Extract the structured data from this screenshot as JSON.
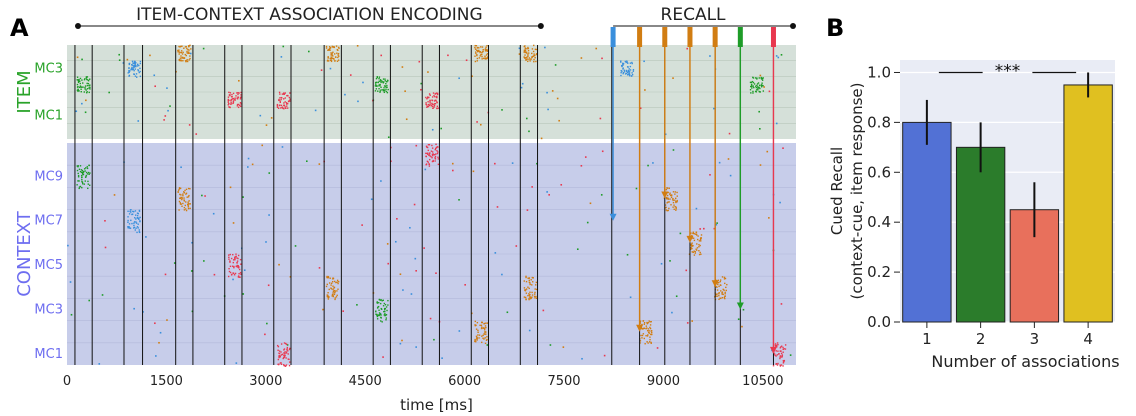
{
  "panel_labels": {
    "a": "A",
    "b": "B"
  },
  "colors": {
    "item_bg": "#d5e0d9",
    "context_bg": "#c7cdea",
    "blue": "#3a8fdc",
    "orange": "#d17d12",
    "green": "#1e9c28",
    "red": "#e8384f",
    "item_label": "#2aa32a",
    "context_label": "#6e6ef0",
    "bar_blue": "#5271d5",
    "bar_green": "#2b7c2b",
    "bar_red": "#e8705c",
    "bar_yellow": "#e0c020",
    "plot_bg_b": "#e9ecf5"
  },
  "chart_data": [
    {
      "type": "scatter",
      "title_encoding": "ITEM-CONTEXT ASSOCIATION ENCODING",
      "title_recall": "RECALL",
      "xlabel": "time [ms]",
      "xlim": [
        0,
        11000
      ],
      "xticks": [
        "0",
        "1500",
        "3000",
        "4500",
        "6000",
        "7500",
        "9000",
        "10500"
      ],
      "xtick_values": [
        0,
        1500,
        3000,
        4500,
        6000,
        7500,
        9000,
        10500
      ],
      "item_group_label": "ITEM",
      "context_group_label": "CONTEXT",
      "item_row_labels": [
        "MC3",
        "MC1"
      ],
      "context_row_labels": [
        "MC9",
        "MC7",
        "MC5",
        "MC3",
        "MC1"
      ],
      "item_rows": 6,
      "context_rows": 10,
      "encoding_end_ms": 7150,
      "stimulus_lines_ms": [
        120,
        380,
        860,
        1140,
        1640,
        1900,
        2380,
        2640,
        3120,
        3380,
        3880,
        4140,
        4620,
        4880,
        5360,
        5620,
        6100,
        6360,
        6840,
        7100,
        8220,
        8640,
        9020,
        9400,
        9780,
        10160,
        10660
      ],
      "encoding_bursts": [
        {
          "t": 240,
          "group": "item",
          "row": 2,
          "color": "green"
        },
        {
          "t": 240,
          "group": "context",
          "row": 1,
          "color": "green"
        },
        {
          "t": 1000,
          "group": "item",
          "row": 1,
          "color": "blue"
        },
        {
          "t": 1000,
          "group": "context",
          "row": 3,
          "color": "blue"
        },
        {
          "t": 1760,
          "group": "item",
          "row": 0,
          "color": "orange"
        },
        {
          "t": 1760,
          "group": "context",
          "row": 2,
          "color": "orange"
        },
        {
          "t": 2520,
          "group": "item",
          "row": 3,
          "color": "red"
        },
        {
          "t": 2520,
          "group": "context",
          "row": 5,
          "color": "red"
        },
        {
          "t": 3260,
          "group": "item",
          "row": 3,
          "color": "red"
        },
        {
          "t": 3260,
          "group": "context",
          "row": 9,
          "color": "red"
        },
        {
          "t": 4000,
          "group": "item",
          "row": 0,
          "color": "orange"
        },
        {
          "t": 4000,
          "group": "context",
          "row": 6,
          "color": "orange"
        },
        {
          "t": 4740,
          "group": "item",
          "row": 2,
          "color": "green"
        },
        {
          "t": 4740,
          "group": "context",
          "row": 7,
          "color": "green"
        },
        {
          "t": 5500,
          "group": "item",
          "row": 3,
          "color": "red"
        },
        {
          "t": 5500,
          "group": "context",
          "row": 0,
          "color": "red"
        },
        {
          "t": 6240,
          "group": "item",
          "row": 0,
          "color": "orange"
        },
        {
          "t": 6240,
          "group": "context",
          "row": 8,
          "color": "orange"
        },
        {
          "t": 6980,
          "group": "item",
          "row": 0,
          "color": "orange"
        },
        {
          "t": 6980,
          "group": "context",
          "row": 6,
          "color": "orange"
        }
      ],
      "recall_cues": [
        {
          "t": 8240,
          "color": "blue",
          "target_row": 3,
          "response_group": "item",
          "response_row": 1,
          "response_t": 8440
        },
        {
          "t": 8640,
          "color": "orange",
          "target_row": 8,
          "response_group": "context",
          "response_row": 8,
          "response_t": 8720
        },
        {
          "t": 9020,
          "color": "orange",
          "target_row": 2,
          "response_group": "context",
          "response_row": 2,
          "response_t": 9100
        },
        {
          "t": 9400,
          "color": "orange",
          "target_row": 4,
          "response_group": "context",
          "response_row": 4,
          "response_t": 9480
        },
        {
          "t": 9780,
          "color": "orange",
          "target_row": 6,
          "response_group": "context",
          "response_row": 6,
          "response_t": 9860
        },
        {
          "t": 10160,
          "color": "green",
          "target_row": 7,
          "response_group": "item",
          "response_row": 2,
          "response_t": 10400
        },
        {
          "t": 10660,
          "color": "red",
          "target_row": 9,
          "response_group": "context",
          "response_row": 9,
          "response_t": 10740
        }
      ]
    },
    {
      "type": "bar",
      "categories": [
        "1",
        "2",
        "3",
        "4"
      ],
      "values": [
        0.8,
        0.7,
        0.45,
        0.95
      ],
      "errors": [
        0.09,
        0.1,
        0.11,
        0.05
      ],
      "bar_colors": [
        "bar_blue",
        "bar_green",
        "bar_red",
        "bar_yellow"
      ],
      "xlabel": "Number of associations",
      "ylabel_line1": "Cued Recall",
      "ylabel_line2": "(context-cue, item response)",
      "ylim": [
        0,
        1.05
      ],
      "yticks": [
        "0.0",
        "0.2",
        "0.4",
        "0.6",
        "0.8",
        "1.0"
      ],
      "ytick_values": [
        0,
        0.2,
        0.4,
        0.6,
        0.8,
        1.0
      ],
      "significance": "***",
      "grid": true
    }
  ]
}
